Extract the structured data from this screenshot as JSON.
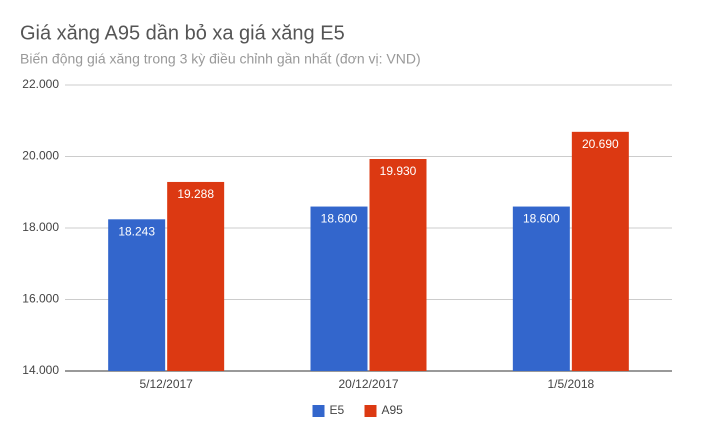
{
  "chart_data": {
    "type": "bar",
    "title": "Giá xăng A95 dần bỏ xa giá xăng E5",
    "subtitle": "Biến động giá xăng trong 3 kỳ điều chỉnh gần nhất (đơn vị: VND)",
    "categories": [
      "5/12/2017",
      "20/12/2017",
      "1/5/2018"
    ],
    "series": [
      {
        "name": "E5",
        "color": "#3366cc",
        "values": [
          18243,
          18600,
          18600
        ],
        "value_labels": [
          "18.243",
          "18.600",
          "18.600"
        ]
      },
      {
        "name": "A95",
        "color": "#dc3912",
        "values": [
          19288,
          19930,
          20690
        ],
        "value_labels": [
          "19.288",
          "19.930",
          "20.690"
        ]
      }
    ],
    "ylim": [
      14000,
      22000
    ],
    "yticks": [
      {
        "value": 14000,
        "label": "14.000"
      },
      {
        "value": 16000,
        "label": "16.000"
      },
      {
        "value": 18000,
        "label": "18.000"
      },
      {
        "value": 20000,
        "label": "20.000"
      },
      {
        "value": 22000,
        "label": "22.000"
      }
    ],
    "grid": true,
    "legend": "bottom"
  }
}
